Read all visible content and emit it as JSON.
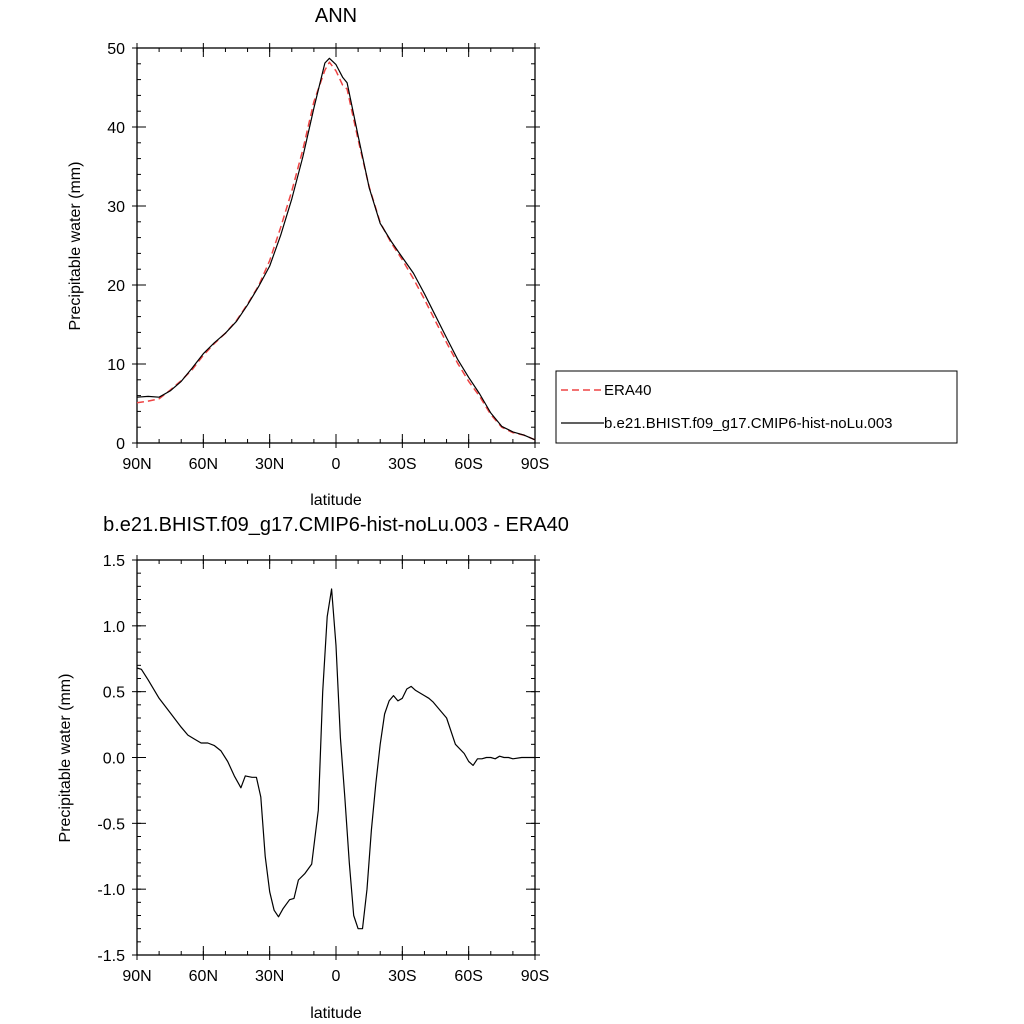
{
  "chart_data": [
    {
      "type": "line",
      "title": "ANN",
      "xlabel": "latitude",
      "ylabel": "Precipitable water (mm)",
      "xlim": [
        90,
        -90
      ],
      "ylim": [
        0,
        50
      ],
      "x_ticks": [
        {
          "value": 90,
          "label": "90N"
        },
        {
          "value": 60,
          "label": "60N"
        },
        {
          "value": 30,
          "label": "30N"
        },
        {
          "value": 0,
          "label": "0"
        },
        {
          "value": -30,
          "label": "30S"
        },
        {
          "value": -60,
          "label": "60S"
        },
        {
          "value": -90,
          "label": "90S"
        }
      ],
      "y_ticks": [
        0,
        10,
        20,
        30,
        40,
        50
      ],
      "legend": {
        "placement": "right",
        "entries": [
          "ERA40",
          "b.e21.BHIST.f09_g17.CMIP6-hist-noLu.003"
        ]
      },
      "series": [
        {
          "name": "ERA40",
          "color": "#ee4444",
          "dash": "dashed",
          "x": [
            90,
            85,
            80,
            75,
            70,
            65,
            60,
            55,
            50,
            45,
            40,
            35,
            30,
            25,
            20,
            15,
            10,
            5,
            3,
            0,
            -3,
            -5,
            -10,
            -15,
            -20,
            -25,
            -30,
            -35,
            -40,
            -45,
            -50,
            -55,
            -60,
            -65,
            -70,
            -75,
            -80,
            -85,
            -90
          ],
          "y": [
            5.1,
            5.3,
            5.6,
            6.7,
            7.9,
            9.3,
            11.1,
            12.6,
            13.9,
            15.5,
            17.6,
            19.9,
            23.1,
            27.3,
            31.9,
            37.1,
            43.2,
            47.2,
            48.2,
            47.1,
            45.3,
            44.8,
            38.4,
            32.4,
            27.9,
            25.3,
            23.2,
            20.8,
            18.2,
            15.4,
            12.7,
            10.1,
            7.8,
            5.9,
            3.6,
            2.0,
            1.3,
            1.0,
            0.4
          ]
        },
        {
          "name": "b.e21.BHIST.f09_g17.CMIP6-hist-noLu.003",
          "color": "#000000",
          "dash": "solid",
          "x": [
            90,
            85,
            80,
            75,
            70,
            65,
            60,
            55,
            50,
            45,
            40,
            35,
            30,
            25,
            20,
            15,
            10,
            5,
            3,
            0,
            -3,
            -5,
            -10,
            -15,
            -20,
            -25,
            -30,
            -35,
            -40,
            -45,
            -50,
            -55,
            -60,
            -65,
            -70,
            -75,
            -80,
            -85,
            -90
          ],
          "y": [
            5.8,
            5.9,
            5.8,
            6.6,
            7.8,
            9.5,
            11.3,
            12.7,
            13.9,
            15.4,
            17.5,
            19.8,
            22.4,
            26.3,
            30.9,
            36.2,
            42.4,
            48.1,
            48.7,
            47.9,
            46.3,
            45.6,
            38.9,
            32.3,
            27.8,
            25.5,
            23.5,
            21.5,
            18.9,
            16.1,
            13.3,
            10.6,
            8.3,
            6.2,
            3.8,
            2.1,
            1.4,
            1.0,
            0.4
          ]
        }
      ]
    },
    {
      "type": "line",
      "title": "b.e21.BHIST.f09_g17.CMIP6-hist-noLu.003 - ERA40",
      "xlabel": "latitude",
      "ylabel": "Precipitable water (mm)",
      "xlim": [
        90,
        -90
      ],
      "ylim": [
        -1.5,
        1.5
      ],
      "x_ticks": [
        {
          "value": 90,
          "label": "90N"
        },
        {
          "value": 60,
          "label": "60N"
        },
        {
          "value": 30,
          "label": "30N"
        },
        {
          "value": 0,
          "label": "0"
        },
        {
          "value": -30,
          "label": "30S"
        },
        {
          "value": -60,
          "label": "60S"
        },
        {
          "value": -90,
          "label": "90S"
        }
      ],
      "y_ticks": [
        {
          "value": -1.5,
          "label": "-1.5"
        },
        {
          "value": -1.0,
          "label": "-1.0"
        },
        {
          "value": -0.5,
          "label": "-0.5"
        },
        {
          "value": 0.0,
          "label": "0.0"
        },
        {
          "value": 0.5,
          "label": "0.5"
        },
        {
          "value": 1.0,
          "label": "1.0"
        },
        {
          "value": 1.5,
          "label": "1.5"
        }
      ],
      "series": [
        {
          "color": "#000000",
          "dash": "solid",
          "x": [
            90,
            88,
            85,
            80,
            75,
            70,
            67,
            64,
            61,
            58,
            55,
            52,
            49,
            46,
            44,
            43,
            41,
            38,
            36,
            34,
            32,
            30,
            28,
            26,
            24,
            21,
            19,
            17,
            14,
            11,
            8,
            6,
            4,
            2,
            0,
            -2,
            -4,
            -6,
            -8,
            -10,
            -12,
            -14,
            -16,
            -18,
            -20,
            -22,
            -24,
            -26,
            -28,
            -30,
            -32,
            -34,
            -36,
            -38,
            -40,
            -42,
            -44,
            -46,
            -50,
            -54,
            -58,
            -60,
            -62,
            -64,
            -66,
            -68,
            -70,
            -72,
            -74,
            -76,
            -78,
            -80,
            -84,
            -88,
            -90
          ],
          "y": [
            0.68,
            0.67,
            0.59,
            0.45,
            0.34,
            0.23,
            0.17,
            0.14,
            0.11,
            0.11,
            0.09,
            0.05,
            -0.03,
            -0.14,
            -0.2,
            -0.23,
            -0.14,
            -0.15,
            -0.15,
            -0.3,
            -0.75,
            -1.02,
            -1.16,
            -1.21,
            -1.15,
            -1.08,
            -1.07,
            -0.93,
            -0.88,
            -0.81,
            -0.4,
            0.5,
            1.07,
            1.28,
            0.85,
            0.15,
            -0.3,
            -0.8,
            -1.2,
            -1.3,
            -1.3,
            -1.0,
            -0.55,
            -0.2,
            0.1,
            0.33,
            0.43,
            0.47,
            0.43,
            0.45,
            0.52,
            0.54,
            0.51,
            0.49,
            0.47,
            0.45,
            0.42,
            0.38,
            0.3,
            0.1,
            0.03,
            -0.03,
            -0.06,
            -0.01,
            -0.01,
            0.0,
            0.0,
            -0.01,
            0.01,
            0.0,
            0.0,
            -0.01,
            0.0,
            0.0,
            0.0
          ]
        }
      ]
    }
  ]
}
